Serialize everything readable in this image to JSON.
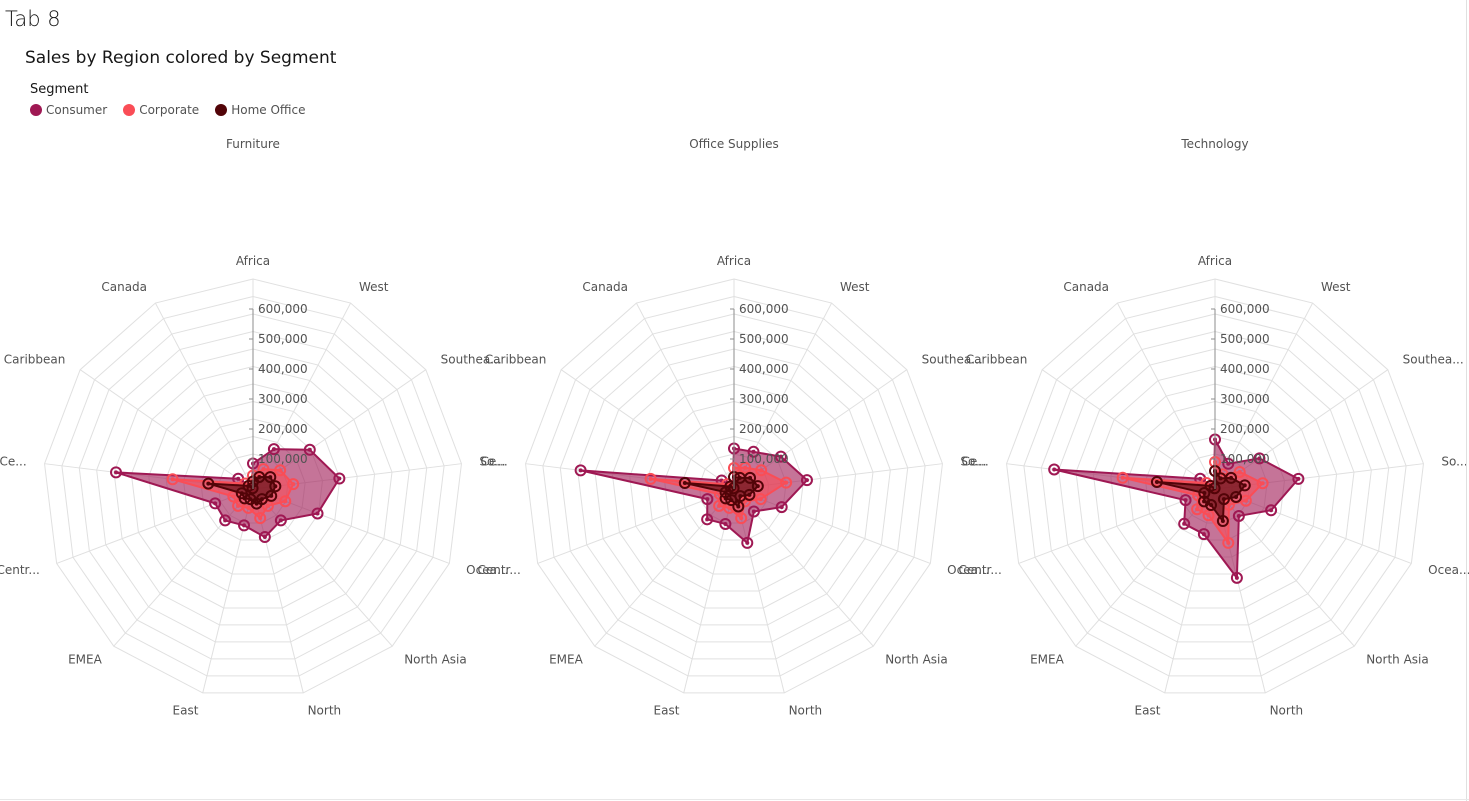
{
  "tab": {
    "title": "Tab 8"
  },
  "chart_data": {
    "type": "radar",
    "title": "Sales by Region colored by Segment",
    "legend_title": "Segment",
    "legend_position": "top-left",
    "panels": [
      "Furniture",
      "Office Supplies",
      "Technology"
    ],
    "axes": [
      "Africa",
      "West",
      "Southeast Asia",
      "South",
      "Oceania",
      "North Asia",
      "North",
      "East",
      "EMEA",
      "Central Asia",
      "Central",
      "Caribbean",
      "Canada"
    ],
    "axis_display_labels": [
      "Africa",
      "West",
      "Southea...",
      "So...",
      "Ocea...",
      "North Asia",
      "North",
      "East",
      "EMEA",
      "Centr...",
      "Ce...",
      "Caribbean",
      "Canada"
    ],
    "radial_ticks": [
      100000,
      200000,
      300000,
      400000,
      500000,
      600000
    ],
    "radial_tick_labels": [
      "100,000",
      "200,000",
      "300,000",
      "400,000",
      "500,000",
      "600,000"
    ],
    "rmax": 600000,
    "grid_rings": 12,
    "colors": {
      "Consumer": "#9f1853",
      "Corporate": "#fa4d56",
      "Home Office": "#520408"
    },
    "series": [
      {
        "panel": "Furniture",
        "name": "Consumer",
        "values": [
          85000,
          150000,
          230000,
          290000,
          230000,
          140000,
          165000,
          125000,
          140000,
          135000,
          460000,
          60000,
          8000
        ]
      },
      {
        "panel": "Furniture",
        "name": "Corporate",
        "values": [
          45000,
          75000,
          110000,
          135000,
          115000,
          75000,
          100000,
          65000,
          75000,
          70000,
          270000,
          32000,
          4000
        ]
      },
      {
        "panel": "Furniture",
        "name": "Home Office",
        "values": [
          25000,
          45000,
          70000,
          75000,
          65000,
          45000,
          50000,
          35000,
          42000,
          40000,
          150000,
          18000,
          3000
        ]
      },
      {
        "panel": "Office Supplies",
        "name": "Consumer",
        "values": [
          135000,
          140000,
          190000,
          245000,
          170000,
          100000,
          185000,
          120000,
          135000,
          95000,
          515000,
          50000,
          10000
        ]
      },
      {
        "panel": "Office Supplies",
        "name": "Corporate",
        "values": [
          70000,
          80000,
          110000,
          175000,
          95000,
          55000,
          100000,
          65000,
          75000,
          50000,
          280000,
          28000,
          6000
        ]
      },
      {
        "panel": "Office Supplies",
        "name": "Home Office",
        "values": [
          40000,
          42000,
          65000,
          80000,
          55000,
          32000,
          60000,
          38000,
          42000,
          30000,
          165000,
          15000,
          3000
        ]
      },
      {
        "panel": "Technology",
        "name": "Consumer",
        "values": [
          165000,
          95000,
          180000,
          280000,
          200000,
          120000,
          305000,
          155000,
          155000,
          105000,
          540000,
          60000,
          9000
        ]
      },
      {
        "panel": "Technology",
        "name": "Corporate",
        "values": [
          90000,
          55000,
          100000,
          160000,
          110000,
          70000,
          185000,
          90000,
          90000,
          60000,
          310000,
          35000,
          5000
        ]
      },
      {
        "panel": "Technology",
        "name": "Home Office",
        "values": [
          60000,
          40000,
          65000,
          100000,
          75000,
          45000,
          110000,
          55000,
          55000,
          38000,
          195000,
          18000,
          3000
        ]
      }
    ]
  }
}
